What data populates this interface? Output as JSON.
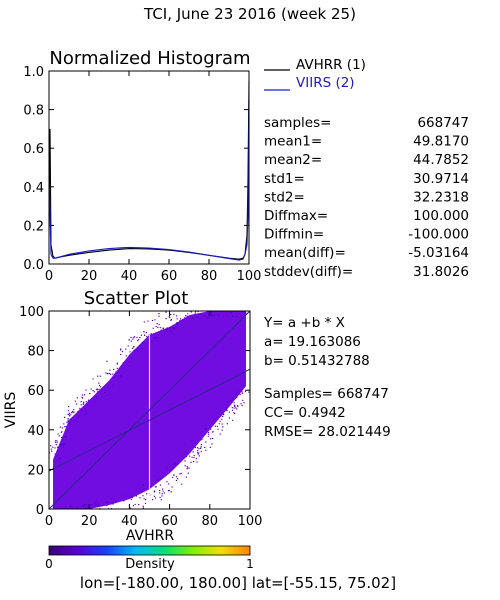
{
  "title": "TCI,  June 23 2016 (week 25)",
  "colors": {
    "avhrr": "#000000",
    "viirs": "#1a1acc",
    "scatter_fill": "#6a00e0",
    "scatter_dark": "#3a00a8",
    "cb_stops": [
      "#3a0078",
      "#5b00d8",
      "#1840ff",
      "#00b8ff",
      "#00e07a",
      "#80f000",
      "#f0e000",
      "#ff8000"
    ]
  },
  "histogram_stats": [
    {
      "label": "samples=",
      "value": "668747"
    },
    {
      "label": "mean1=",
      "value": "49.8170"
    },
    {
      "label": "mean2=",
      "value": "44.7852"
    },
    {
      "label": "std1=",
      "value": "30.9714"
    },
    {
      "label": "std2=",
      "value": "32.2318"
    },
    {
      "label": "Diffmax=",
      "value": "100.000"
    },
    {
      "label": "Diffmin=",
      "value": "-100.000"
    },
    {
      "label": "mean(diff)=",
      "value": "-5.03164"
    },
    {
      "label": "stddev(diff)=",
      "value": "31.8026"
    }
  ],
  "regression": {
    "equation": "Y= a +b * X",
    "a": "a= 19.163086",
    "b": "b= 0.51432788",
    "samples": "Samples= 668747",
    "cc": "CC=  0.4942",
    "rmse": "RMSE= 28.021449"
  },
  "colorbar": {
    "title": "Density",
    "min_label": "0",
    "max_label": "1"
  },
  "footer": "lon=[-180.00, 180.00] lat=[-55.15, 75.02]",
  "chart_data": [
    {
      "type": "line",
      "title": "Normalized Histogram",
      "xlim": [
        0,
        100
      ],
      "ylim": [
        0,
        1
      ],
      "xticks": [
        "0",
        "20",
        "40",
        "60",
        "80",
        "100"
      ],
      "yticks": [
        "0.0",
        "0.2",
        "0.4",
        "0.6",
        "0.8",
        "1.0"
      ],
      "legend_placement": "top-right",
      "series": [
        {
          "name": "AVHRR (1)",
          "x": [
            0,
            0.5,
            1,
            2,
            3,
            5,
            10,
            20,
            30,
            40,
            50,
            60,
            70,
            80,
            90,
            95,
            97,
            98,
            99,
            99.5,
            100
          ],
          "y": [
            0.25,
            0.7,
            0.1,
            0.04,
            0.03,
            0.035,
            0.045,
            0.06,
            0.072,
            0.08,
            0.078,
            0.072,
            0.06,
            0.045,
            0.03,
            0.025,
            0.03,
            0.05,
            0.15,
            0.45,
            0.95
          ]
        },
        {
          "name": "VIIRS (2)",
          "x": [
            0,
            0.5,
            1,
            2,
            3,
            5,
            10,
            20,
            30,
            40,
            50,
            60,
            70,
            80,
            90,
            95,
            97,
            98,
            99,
            99.5,
            100
          ],
          "y": [
            0.45,
            0.25,
            0.05,
            0.03,
            0.03,
            0.035,
            0.05,
            0.068,
            0.08,
            0.086,
            0.083,
            0.075,
            0.062,
            0.045,
            0.028,
            0.02,
            0.025,
            0.05,
            0.1,
            0.25,
            0.85
          ]
        }
      ]
    },
    {
      "type": "scatter",
      "title": "Scatter Plot",
      "xlabel": "AVHRR",
      "ylabel": "VIIRS",
      "xlim": [
        0,
        100
      ],
      "ylim": [
        0,
        100
      ],
      "xticks": [
        "0",
        "20",
        "40",
        "60",
        "80",
        "100"
      ],
      "yticks": [
        "0",
        "20",
        "40",
        "60",
        "80",
        "100"
      ],
      "regression": {
        "a": 19.163086,
        "b": 0.51432788
      },
      "density_envelope": [
        {
          "x": 2,
          "y_low": 0,
          "y_high": 25
        },
        {
          "x": 10,
          "y_low": 0,
          "y_high": 45
        },
        {
          "x": 20,
          "y_low": 0,
          "y_high": 55
        },
        {
          "x": 30,
          "y_low": 2,
          "y_high": 65
        },
        {
          "x": 40,
          "y_low": 5,
          "y_high": 78
        },
        {
          "x": 50,
          "y_low": 10,
          "y_high": 88
        },
        {
          "x": 60,
          "y_low": 18,
          "y_high": 92
        },
        {
          "x": 70,
          "y_low": 28,
          "y_high": 98
        },
        {
          "x": 80,
          "y_low": 40,
          "y_high": 100
        },
        {
          "x": 90,
          "y_low": 52,
          "y_high": 100
        },
        {
          "x": 98,
          "y_low": 62,
          "y_high": 100
        }
      ]
    }
  ]
}
